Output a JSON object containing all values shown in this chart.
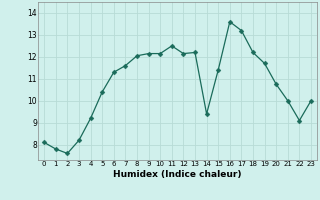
{
  "x": [
    0,
    1,
    2,
    3,
    4,
    5,
    6,
    7,
    8,
    9,
    10,
    11,
    12,
    13,
    14,
    15,
    16,
    17,
    18,
    19,
    20,
    21,
    22,
    23
  ],
  "y": [
    8.1,
    7.8,
    7.6,
    8.2,
    9.2,
    10.4,
    11.3,
    11.6,
    12.05,
    12.15,
    12.15,
    12.5,
    12.15,
    12.2,
    9.4,
    11.4,
    13.6,
    13.2,
    12.2,
    11.7,
    10.75,
    10.0,
    9.1,
    10.0
  ],
  "line_color": "#1a6b5a",
  "marker": "D",
  "marker_size": 2.5,
  "bg_color": "#d0f0ec",
  "grid_color": "#b8dbd6",
  "xlabel": "Humidex (Indice chaleur)",
  "xlim": [
    -0.5,
    23.5
  ],
  "ylim": [
    7.3,
    14.5
  ],
  "yticks": [
    8,
    9,
    10,
    11,
    12,
    13,
    14
  ],
  "xticks": [
    0,
    1,
    2,
    3,
    4,
    5,
    6,
    7,
    8,
    9,
    10,
    11,
    12,
    13,
    14,
    15,
    16,
    17,
    18,
    19,
    20,
    21,
    22,
    23
  ],
  "xlabel_fontsize": 6.5,
  "xtick_fontsize": 5.0,
  "ytick_fontsize": 5.5
}
